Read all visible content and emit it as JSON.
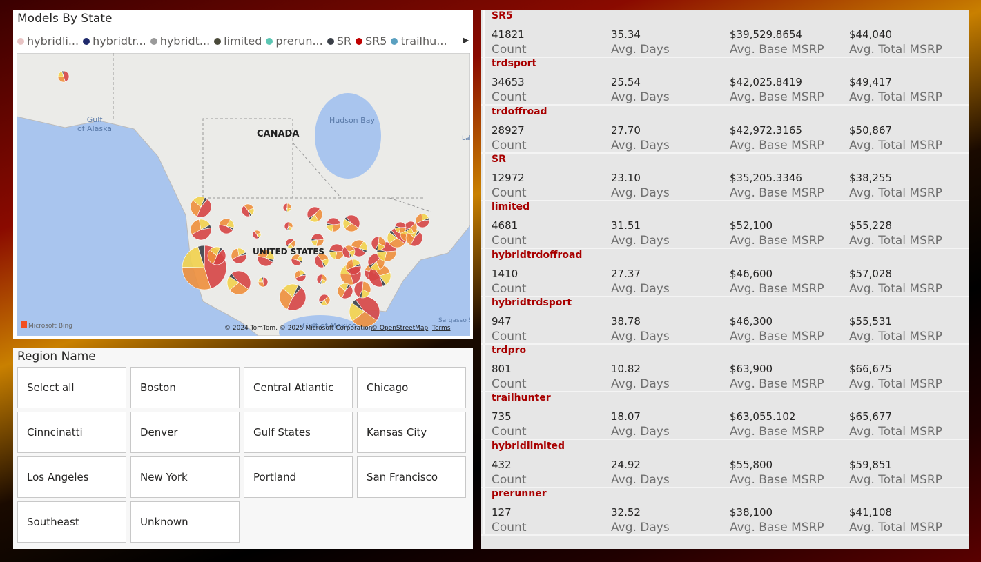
{
  "map": {
    "title": "Models By State",
    "legend": [
      {
        "label": "hybridli...",
        "color": "#e8c4c4"
      },
      {
        "label": "hybridtr...",
        "color": "#1f2a6b"
      },
      {
        "label": "hybridt...",
        "color": "#9a9a9a"
      },
      {
        "label": "limited",
        "color": "#4a4a3a"
      },
      {
        "label": "prerun...",
        "color": "#5cc6b3"
      },
      {
        "label": "SR",
        "color": "#3a3f47"
      },
      {
        "label": "SR5",
        "color": "#c00000"
      },
      {
        "label": "trailhu...",
        "color": "#5aa0c0"
      }
    ],
    "labels": {
      "gulf_of_alaska": "Gulf\nof Alaska",
      "canada": "CANADA",
      "hudson_bay": "Hudson Bay",
      "united_states": "UNITED STATES",
      "bing": "Microsoft Bing",
      "copyright": "© 2024 TomTom, © 2025 Microsoft Corporation,",
      "osm": "© OpenStreetMap",
      "terms": "Terms",
      "sargasso": "Sargasso S",
      "labrador": "Lab",
      "gulf_of_mexico": "Gulf of Mexico"
    }
  },
  "slicer": {
    "title": "Region Name",
    "options": [
      "Select all",
      "Boston",
      "Central Atlantic",
      "Chicago",
      "Cinncinatti",
      "Denver",
      "Gulf States",
      "Kansas City",
      "Los Angeles",
      "New York",
      "Portland",
      "San Francisco",
      "Southeast",
      "Unknown"
    ]
  },
  "cards": {
    "labels": [
      "Count",
      "Avg. Days",
      "Avg. Base MSRP",
      "Avg. Total MSRP"
    ],
    "rows": [
      {
        "name": "SR5",
        "values": [
          "41821",
          "35.34",
          "$39,529.8654",
          "$44,040"
        ]
      },
      {
        "name": "trdsport",
        "values": [
          "34653",
          "25.54",
          "$42,025.8419",
          "$49,417"
        ]
      },
      {
        "name": "trdoffroad",
        "values": [
          "28927",
          "27.70",
          "$42,972.3165",
          "$50,867"
        ]
      },
      {
        "name": "SR",
        "values": [
          "12972",
          "23.10",
          "$35,205.3346",
          "$38,255"
        ]
      },
      {
        "name": "limited",
        "values": [
          "4681",
          "31.51",
          "$52,100",
          "$55,228"
        ]
      },
      {
        "name": "hybridtrdoffroad",
        "values": [
          "1410",
          "27.37",
          "$46,600",
          "$57,028"
        ]
      },
      {
        "name": "hybridtrdsport",
        "values": [
          "947",
          "38.78",
          "$46,300",
          "$55,531"
        ]
      },
      {
        "name": "trdpro",
        "values": [
          "801",
          "10.82",
          "$63,900",
          "$66,675"
        ]
      },
      {
        "name": "trailhunter",
        "values": [
          "735",
          "18.07",
          "$63,055.102",
          "$65,677"
        ]
      },
      {
        "name": "hybridlimited",
        "values": [
          "432",
          "24.92",
          "$55,800",
          "$59,851"
        ]
      },
      {
        "name": "prerunner",
        "values": [
          "127",
          "32.52",
          "$38,100",
          "$41,108"
        ]
      }
    ]
  }
}
